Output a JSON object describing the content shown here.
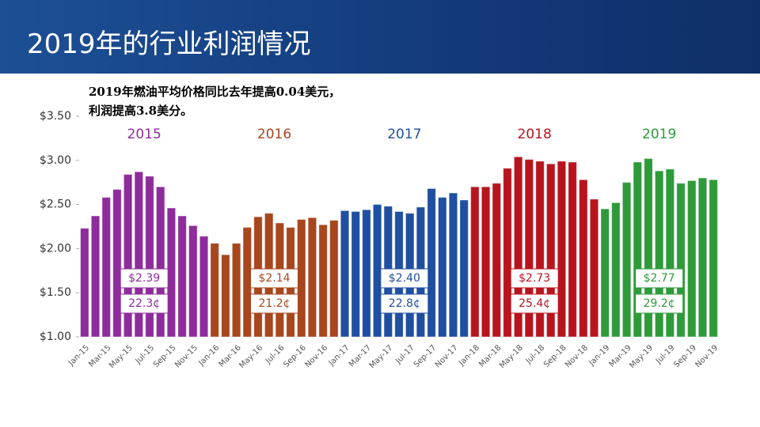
{
  "title": "2019年的行业利润情况",
  "note": [
    "2019年燃油平均价格同比去年提高0.04美元，",
    "利润提高3.8美分。"
  ],
  "chart_data": {
    "type": "bar",
    "categories": [
      "Jan-15",
      null,
      "Mar-15",
      null,
      "May-15",
      null,
      "Jul-15",
      null,
      "Sep-15",
      null,
      "Nov-15",
      null,
      "Jan-16",
      null,
      "Mar-16",
      null,
      "May-16",
      null,
      "Jul-16",
      null,
      "Sep-16",
      null,
      "Nov-16",
      null,
      "Jan-17",
      null,
      "Mar-17",
      null,
      "May-17",
      null,
      "Jul-17",
      null,
      "Sep-17",
      null,
      "Nov-17",
      null,
      "Jan-18",
      null,
      "Mar-18",
      null,
      "May-18",
      null,
      "Jul-18",
      null,
      "Sep-18",
      null,
      "Nov-18",
      null,
      "Jan-19",
      null,
      "Mar-19",
      null,
      "May-19",
      null,
      "Jul-19",
      null,
      "Sep-19",
      null,
      "Nov-19"
    ],
    "series": [
      {
        "name": "2015",
        "color": "#8e2c9c",
        "annotations": [
          "$2.39",
          "22.3¢"
        ],
        "values": [
          2.23,
          2.37,
          2.58,
          2.67,
          2.84,
          2.87,
          2.82,
          2.7,
          2.46,
          2.37,
          2.26,
          2.14,
          null,
          null,
          null,
          null,
          null,
          null,
          null,
          null,
          null,
          null,
          null,
          null,
          null,
          null,
          null,
          null,
          null,
          null,
          null,
          null,
          null,
          null,
          null,
          null,
          null,
          null,
          null,
          null,
          null,
          null,
          null,
          null,
          null,
          null,
          null,
          null,
          null,
          null,
          null,
          null,
          null,
          null,
          null,
          null,
          null,
          null,
          null
        ]
      },
      {
        "name": "2016",
        "color": "#a8461e",
        "annotations": [
          "$2.14",
          "21.2¢"
        ],
        "values": [
          null,
          null,
          null,
          null,
          null,
          null,
          null,
          null,
          null,
          null,
          null,
          null,
          2.06,
          1.93,
          2.06,
          2.24,
          2.36,
          2.4,
          2.29,
          2.24,
          2.33,
          2.35,
          2.27,
          2.32,
          null,
          null,
          null,
          null,
          null,
          null,
          null,
          null,
          null,
          null,
          null,
          null,
          null,
          null,
          null,
          null,
          null,
          null,
          null,
          null,
          null,
          null,
          null,
          null,
          null,
          null,
          null,
          null,
          null,
          null,
          null,
          null,
          null,
          null,
          null
        ]
      },
      {
        "name": "2017",
        "color": "#1f4fa0",
        "annotations": [
          "$2.40",
          "22.8¢"
        ],
        "values": [
          null,
          null,
          null,
          null,
          null,
          null,
          null,
          null,
          null,
          null,
          null,
          null,
          null,
          null,
          null,
          null,
          null,
          null,
          null,
          null,
          null,
          null,
          null,
          null,
          2.43,
          2.42,
          2.44,
          2.5,
          2.48,
          2.42,
          2.4,
          2.47,
          2.68,
          2.58,
          2.63,
          2.55,
          null,
          null,
          null,
          null,
          null,
          null,
          null,
          null,
          null,
          null,
          null,
          null,
          null,
          null,
          null,
          null,
          null,
          null,
          null,
          null,
          null,
          null,
          null
        ]
      },
      {
        "name": "2018",
        "color": "#b8141e",
        "annotations": [
          "$2.73",
          "25.4¢"
        ],
        "values": [
          null,
          null,
          null,
          null,
          null,
          null,
          null,
          null,
          null,
          null,
          null,
          null,
          null,
          null,
          null,
          null,
          null,
          null,
          null,
          null,
          null,
          null,
          null,
          null,
          null,
          null,
          null,
          null,
          null,
          null,
          null,
          null,
          null,
          null,
          null,
          null,
          2.7,
          2.7,
          2.74,
          2.91,
          3.04,
          3.01,
          2.99,
          2.96,
          2.99,
          2.98,
          2.78,
          2.56,
          null,
          null,
          null,
          null,
          null,
          null,
          null,
          null,
          null,
          null,
          null
        ]
      },
      {
        "name": "2019",
        "color": "#2f9a3a",
        "annotations": [
          "$2.77",
          "29.2¢"
        ],
        "values": [
          null,
          null,
          null,
          null,
          null,
          null,
          null,
          null,
          null,
          null,
          null,
          null,
          null,
          null,
          null,
          null,
          null,
          null,
          null,
          null,
          null,
          null,
          null,
          null,
          null,
          null,
          null,
          null,
          null,
          null,
          null,
          null,
          null,
          null,
          null,
          null,
          null,
          null,
          null,
          null,
          null,
          null,
          null,
          null,
          null,
          null,
          null,
          null,
          2.45,
          2.52,
          2.75,
          2.98,
          3.02,
          2.88,
          2.9,
          2.74,
          2.77,
          2.8,
          2.78
        ]
      }
    ],
    "ylim": [
      1,
      3.5
    ],
    "yticks": [
      {
        "value": 1,
        "label": "$1.00"
      },
      {
        "value": 1.5,
        "label": "$1.50"
      },
      {
        "value": 2,
        "label": "$2.00"
      },
      {
        "value": 2.5,
        "label": "$2.50"
      },
      {
        "value": 3,
        "label": "$3.00"
      },
      {
        "value": 3.5,
        "label": "$3.50"
      }
    ]
  }
}
